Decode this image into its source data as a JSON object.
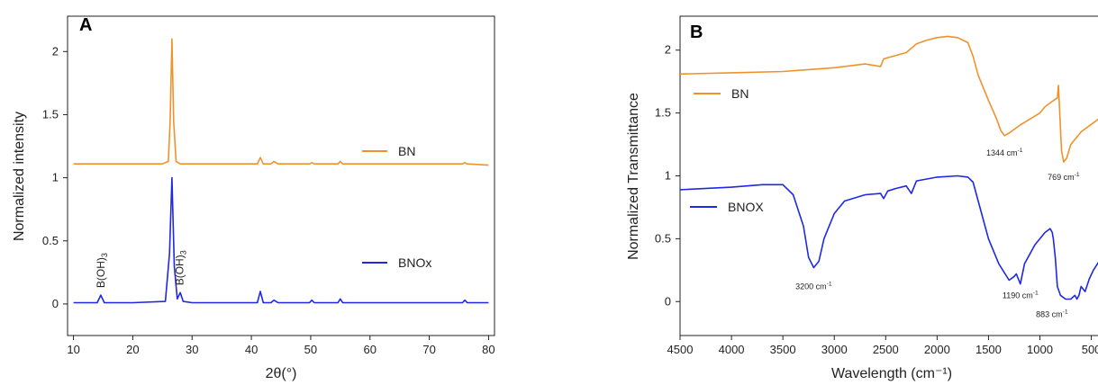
{
  "chart_data": [
    {
      "type": "line",
      "panel_label": "A",
      "xlabel": "2θ(°)",
      "ylabel": "Normalized intensity",
      "xlim": [
        9,
        81
      ],
      "ylim": [
        -0.25,
        2.28
      ],
      "xticks": [
        "10",
        "20",
        "30",
        "40",
        "50",
        "60",
        "70",
        "80"
      ],
      "xtick_values": [
        10,
        20,
        30,
        40,
        50,
        60,
        70,
        80
      ],
      "yticks": [
        "0",
        "0.5",
        "1",
        "1.5",
        "2"
      ],
      "ytick_values": [
        0,
        0.5,
        1,
        1.5,
        2
      ],
      "grid": false,
      "legend_position": "right",
      "series": [
        {
          "name": "BN",
          "color": "#f0922b",
          "x": [
            10,
            20,
            25,
            26,
            26.3,
            26.6,
            26.9,
            27.3,
            28,
            30,
            41,
            41.5,
            42,
            43.3,
            43.8,
            44.5,
            49.8,
            50.2,
            50.6,
            54.6,
            55,
            55.4,
            75.6,
            76,
            76.4,
            80
          ],
          "y": [
            1.11,
            1.11,
            1.11,
            1.13,
            1.45,
            2.1,
            1.45,
            1.13,
            1.11,
            1.11,
            1.11,
            1.16,
            1.11,
            1.11,
            1.13,
            1.11,
            1.11,
            1.12,
            1.11,
            1.11,
            1.13,
            1.11,
            1.11,
            1.12,
            1.11,
            1.1
          ]
        },
        {
          "name": "BNOx",
          "color": "#1e28e6",
          "x": [
            10,
            14,
            14.6,
            15.2,
            20,
            25.5,
            26.2,
            26.6,
            27,
            27.5,
            28,
            28.5,
            30,
            41,
            41.5,
            42,
            43.3,
            43.8,
            44.5,
            49.8,
            50.2,
            50.6,
            54.6,
            55,
            55.4,
            75.6,
            76,
            76.4,
            80
          ],
          "y": [
            0.01,
            0.01,
            0.07,
            0.01,
            0.01,
            0.02,
            0.4,
            1.0,
            0.3,
            0.04,
            0.09,
            0.02,
            0.01,
            0.01,
            0.1,
            0.01,
            0.01,
            0.03,
            0.01,
            0.01,
            0.03,
            0.01,
            0.01,
            0.04,
            0.01,
            0.01,
            0.03,
            0.01,
            0.01
          ]
        }
      ],
      "annotations": [
        {
          "text": "B(OH)",
          "sub": "3",
          "x": 14.6,
          "y": 0.07
        },
        {
          "text": "B(OH)",
          "sub": "3",
          "x": 27.9,
          "y": 0.09
        }
      ]
    },
    {
      "type": "line",
      "panel_label": "B",
      "xlabel": "Wavelength (cm⁻¹)",
      "ylabel": "Normalized Transmittance",
      "xlim": [
        4500,
        400
      ],
      "ylim": [
        -0.27,
        2.27
      ],
      "xticks": [
        "4500",
        "4000",
        "3500",
        "3000",
        "2500",
        "2000",
        "1500",
        "1000",
        "500"
      ],
      "xtick_values": [
        4500,
        4000,
        3500,
        3000,
        2500,
        2000,
        1500,
        1000,
        500
      ],
      "yticks": [
        "0",
        "0.5",
        "1",
        "1.5",
        "2"
      ],
      "ytick_values": [
        0,
        0.5,
        1,
        1.5,
        2
      ],
      "grid": false,
      "legend_position": "left",
      "series": [
        {
          "name": "BN",
          "color": "#f0922b",
          "x": [
            4500,
            4000,
            3500,
            3000,
            2700,
            2550,
            2520,
            2480,
            2300,
            2200,
            2100,
            2000,
            1900,
            1800,
            1700,
            1650,
            1600,
            1500,
            1420,
            1380,
            1344,
            1300,
            1200,
            1100,
            1000,
            950,
            900,
            830,
            820,
            810,
            790,
            769,
            740,
            700,
            600,
            500,
            400
          ],
          "y": [
            1.81,
            1.82,
            1.83,
            1.86,
            1.89,
            1.87,
            1.93,
            1.94,
            1.98,
            2.05,
            2.08,
            2.1,
            2.11,
            2.1,
            2.06,
            1.95,
            1.8,
            1.6,
            1.45,
            1.36,
            1.32,
            1.34,
            1.4,
            1.45,
            1.5,
            1.55,
            1.58,
            1.62,
            1.72,
            1.55,
            1.2,
            1.11,
            1.14,
            1.25,
            1.35,
            1.41,
            1.47
          ]
        },
        {
          "name": "BNOX",
          "color": "#1e28e6",
          "x": [
            4500,
            4000,
            3700,
            3500,
            3400,
            3300,
            3250,
            3200,
            3150,
            3100,
            3000,
            2900,
            2700,
            2550,
            2520,
            2480,
            2400,
            2300,
            2250,
            2200,
            2000,
            1800,
            1700,
            1650,
            1600,
            1500,
            1400,
            1300,
            1250,
            1230,
            1190,
            1150,
            1050,
            950,
            900,
            880,
            870,
            850,
            830,
            800,
            750,
            700,
            660,
            640,
            620,
            600,
            560,
            520,
            480,
            440,
            400
          ],
          "y": [
            0.89,
            0.91,
            0.93,
            0.93,
            0.85,
            0.6,
            0.35,
            0.27,
            0.32,
            0.5,
            0.7,
            0.8,
            0.85,
            0.86,
            0.82,
            0.88,
            0.9,
            0.92,
            0.86,
            0.96,
            0.99,
            1.0,
            0.99,
            0.95,
            0.8,
            0.5,
            0.3,
            0.17,
            0.2,
            0.22,
            0.14,
            0.3,
            0.45,
            0.55,
            0.58,
            0.55,
            0.5,
            0.35,
            0.12,
            0.05,
            0.02,
            0.02,
            0.05,
            0.02,
            0.05,
            0.12,
            0.08,
            0.18,
            0.25,
            0.3,
            0.35
          ]
        }
      ],
      "annotations": [
        {
          "text": "1344 cm",
          "sup": "-1",
          "x": 1344,
          "y": 1.32
        },
        {
          "text": "769 cm",
          "sup": "-1",
          "x": 769,
          "y": 1.11
        },
        {
          "text": "3200 cm",
          "sup": "-1",
          "x": 3200,
          "y": 0.27
        },
        {
          "text": "1190 cm",
          "sup": "-1",
          "x": 1190,
          "y": 0.14
        },
        {
          "text": "883 cm",
          "sup": "-1",
          "x": 883,
          "y": 0.02
        }
      ]
    }
  ]
}
